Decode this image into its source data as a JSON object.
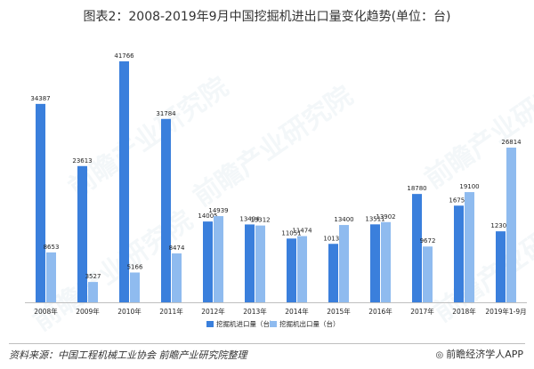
{
  "page": {
    "title": "图表2：2008-2019年9月中国挖掘机进出口量变化趋势(单位：台)",
    "source": "资料来源：中国工程机械工业协会 前瞻产业研究院整理",
    "brand": "前瞻经济学人APP",
    "watermark": "前瞻产业研究院"
  },
  "chart_data": {
    "type": "bar",
    "categories": [
      "2008年",
      "2009年",
      "2010年",
      "2011年",
      "2012年",
      "2013年",
      "2014年",
      "2015年",
      "2016年",
      "2017年",
      "2018年",
      "2019年1-9月"
    ],
    "series": [
      {
        "name": "挖掘机进口量（台）",
        "color": "#3a7fdc",
        "values": [
          34387,
          23613,
          41766,
          31784,
          14005,
          13494,
          11051,
          10132,
          13511,
          18780,
          16755,
          12306
        ]
      },
      {
        "name": "挖掘机出口量（台）",
        "color": "#8fbbef",
        "values": [
          8653,
          3527,
          5166,
          8474,
          14939,
          13312,
          11474,
          13400,
          13902,
          9672,
          19100,
          26814
        ]
      }
    ],
    "ylim": [
      0,
      45000
    ],
    "legend": "bottom",
    "grid": false
  }
}
